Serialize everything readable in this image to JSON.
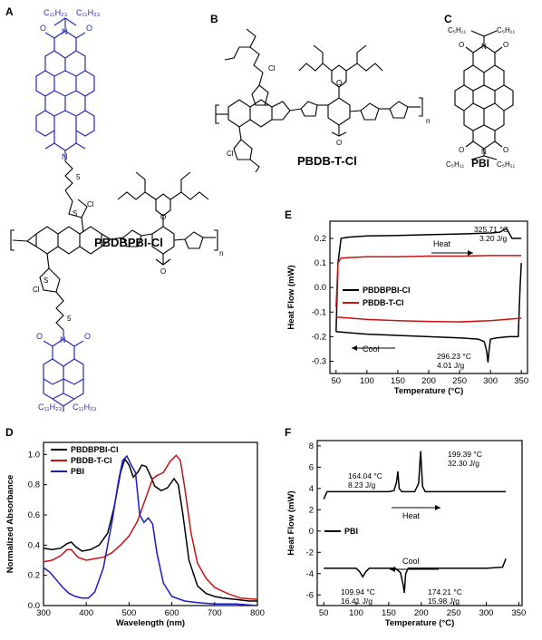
{
  "panels": {
    "A": {
      "label": "A",
      "molecule_name": "PBDBPBI-Cl",
      "atoms": {
        "alkyl_top": "C₁₁H₂₃",
        "alkyl_top2": "C₁₁H₂₃",
        "alkyl_bot": "C₁₁H₂₃",
        "alkyl_bot2": "C₁₁H₂₃",
        "N": "N",
        "O": "O",
        "S": "S",
        "Cl": "Cl",
        "n": "n",
        "spacer": "5"
      }
    },
    "B": {
      "label": "B",
      "molecule_name": "PBDB-T-Cl",
      "atoms": {
        "S": "S",
        "O": "O",
        "Cl": "Cl",
        "n": "n"
      }
    },
    "C": {
      "label": "C",
      "molecule_name": "PBI",
      "atoms": {
        "alkyl": "C₅H₁₁",
        "N": "N",
        "O": "O"
      }
    },
    "E": {
      "label": "E",
      "annotations": {
        "heat": "Heat",
        "cool": "Cool",
        "peak_heat": "325.71 °C",
        "peak_heat_enthalpy": "3.20 J/g",
        "peak_cool": "296.23 °C",
        "peak_cool_enthalpy": "4.01 J/g"
      }
    },
    "D": {
      "label": "D"
    },
    "F": {
      "label": "F",
      "annotations": {
        "heat": "Heat",
        "cool": "Cool",
        "peak1": "164.04 °C",
        "peak1_enthalpy": "8.23 J/g",
        "peak2": "199.39 °C",
        "peak2_enthalpy": "32.30 J/g",
        "peak3": "109.94 °C",
        "peak3_enthalpy": "16.41 J/g",
        "peak4": "174.21 °C",
        "peak4_enthalpy": "15.98 J/g"
      }
    }
  },
  "chart_data": [
    {
      "id": "E",
      "type": "line",
      "xlabel": "Temperature (°C)",
      "ylabel": "Heat Flow (mW)",
      "xlim": [
        40,
        360
      ],
      "ylim": [
        -0.35,
        0.27
      ],
      "xticks": [
        "50",
        "100",
        "150",
        "200",
        "250",
        "300",
        "350"
      ],
      "yticks": [
        "0.2",
        "0.1",
        "0.0",
        "-0.1",
        "-0.2",
        "-0.3"
      ],
      "legend": [
        "PBDBPBI-Cl",
        "PBDB-T-Cl"
      ],
      "legend_placement": "center-left",
      "series": [
        {
          "name": "PBDBPBI-Cl",
          "color": "#000000",
          "segment": "heat",
          "x": [
            50,
            53,
            58,
            70,
            100,
            150,
            200,
            250,
            300,
            315,
            322,
            326,
            330,
            335,
            345,
            350
          ],
          "y": [
            -0.18,
            0.1,
            0.2,
            0.205,
            0.21,
            0.212,
            0.215,
            0.218,
            0.222,
            0.225,
            0.235,
            0.24,
            0.222,
            0.2,
            0.2,
            0.2
          ]
        },
        {
          "name": "PBDBPBI-Cl",
          "color": "#000000",
          "segment": "cool",
          "x": [
            50,
            100,
            150,
            200,
            250,
            280,
            290,
            294,
            296,
            298,
            300,
            310,
            330,
            345,
            348,
            350
          ],
          "y": [
            -0.18,
            -0.19,
            -0.195,
            -0.2,
            -0.205,
            -0.21,
            -0.22,
            -0.26,
            -0.305,
            -0.25,
            -0.21,
            -0.205,
            -0.2,
            -0.2,
            0.0,
            0.1
          ]
        },
        {
          "name": "PBDB-T-Cl",
          "color": "#cc1111",
          "segment": "heat",
          "x": [
            50,
            53,
            58,
            100,
            150,
            200,
            250,
            300,
            350
          ],
          "y": [
            -0.08,
            0.1,
            0.12,
            0.125,
            0.125,
            0.128,
            0.128,
            0.13,
            0.13
          ]
        },
        {
          "name": "PBDB-T-Cl",
          "color": "#cc1111",
          "segment": "cool",
          "x": [
            50,
            100,
            150,
            200,
            250,
            300,
            350
          ],
          "y": [
            -0.12,
            -0.13,
            -0.135,
            -0.138,
            -0.14,
            -0.135,
            -0.125
          ]
        }
      ]
    },
    {
      "id": "D",
      "type": "line",
      "xlabel": "Wavelength (nm)",
      "ylabel": "Normalized Absorbance",
      "xlim": [
        300,
        800
      ],
      "ylim": [
        0,
        1.08
      ],
      "xticks": [
        "300",
        "400",
        "500",
        "600",
        "700",
        "800"
      ],
      "yticks": [
        "0.0",
        "0.2",
        "0.4",
        "0.6",
        "0.8",
        "1.0"
      ],
      "legend": [
        "PBDBPBI-Cl",
        "PBDB-T-Cl",
        "PBI"
      ],
      "legend_placement": "top-left",
      "series": [
        {
          "name": "PBDBPBI-Cl",
          "color": "#000000",
          "x": [
            300,
            320,
            340,
            355,
            365,
            375,
            390,
            410,
            430,
            450,
            465,
            480,
            490,
            500,
            510,
            520,
            530,
            540,
            550,
            560,
            575,
            590,
            605,
            615,
            625,
            640,
            660,
            680,
            700,
            720,
            750,
            780,
            800
          ],
          "y": [
            0.38,
            0.37,
            0.38,
            0.41,
            0.42,
            0.39,
            0.36,
            0.37,
            0.4,
            0.48,
            0.65,
            0.88,
            0.97,
            0.93,
            0.85,
            0.88,
            0.93,
            0.92,
            0.86,
            0.79,
            0.76,
            0.78,
            0.84,
            0.8,
            0.62,
            0.3,
            0.13,
            0.08,
            0.06,
            0.05,
            0.04,
            0.03,
            0.03
          ]
        },
        {
          "name": "PBDB-T-Cl",
          "color": "#cc1111",
          "x": [
            300,
            320,
            340,
            355,
            365,
            380,
            400,
            420,
            440,
            460,
            480,
            500,
            520,
            540,
            555,
            565,
            580,
            595,
            610,
            620,
            630,
            645,
            660,
            680,
            700,
            730,
            760,
            800
          ],
          "y": [
            0.29,
            0.3,
            0.33,
            0.37,
            0.37,
            0.32,
            0.3,
            0.31,
            0.32,
            0.35,
            0.4,
            0.46,
            0.56,
            0.72,
            0.84,
            0.86,
            0.88,
            0.95,
            0.995,
            0.96,
            0.78,
            0.48,
            0.28,
            0.18,
            0.12,
            0.08,
            0.05,
            0.04
          ]
        },
        {
          "name": "PBI",
          "color": "#1a1acc",
          "x": [
            300,
            315,
            330,
            345,
            360,
            375,
            390,
            405,
            420,
            440,
            460,
            475,
            485,
            495,
            505,
            515,
            525,
            535,
            545,
            555,
            565,
            580,
            600,
            630,
            660,
            700,
            750,
            800
          ],
          "y": [
            0.25,
            0.22,
            0.17,
            0.12,
            0.08,
            0.06,
            0.05,
            0.05,
            0.09,
            0.25,
            0.55,
            0.82,
            0.96,
            0.99,
            0.93,
            0.88,
            0.6,
            0.55,
            0.58,
            0.54,
            0.35,
            0.15,
            0.06,
            0.03,
            0.02,
            0.01,
            0.01,
            0.0
          ]
        }
      ]
    },
    {
      "id": "F",
      "type": "line",
      "xlabel": "Temperature (°C)",
      "ylabel": "Heat Flow (mW)",
      "xlim": [
        40,
        355
      ],
      "ylim": [
        -7,
        8.5
      ],
      "xticks": [
        "50",
        "100",
        "150",
        "200",
        "250",
        "300",
        "350"
      ],
      "yticks": [
        "8",
        "6",
        "4",
        "2",
        "0",
        "-2",
        "-4",
        "-6"
      ],
      "legend": [
        "PBI"
      ],
      "legend_placement": "center-left",
      "series": [
        {
          "name": "PBI",
          "color": "#000000",
          "segment": "heat",
          "x": [
            50,
            55,
            60,
            100,
            150,
            158,
            162,
            164,
            166,
            170,
            190,
            196,
            199,
            202,
            206,
            250,
            300,
            330
          ],
          "y": [
            3.0,
            3.7,
            3.7,
            3.7,
            3.7,
            3.8,
            4.6,
            5.6,
            4.0,
            3.7,
            3.7,
            4.5,
            7.5,
            4.2,
            3.7,
            3.7,
            3.7,
            3.7
          ]
        },
        {
          "name": "PBI",
          "color": "#000000",
          "segment": "cool",
          "x": [
            50,
            100,
            105,
            110,
            115,
            120,
            160,
            168,
            172,
            174,
            176,
            180,
            250,
            300,
            325,
            330
          ],
          "y": [
            -3.5,
            -3.5,
            -3.8,
            -4.3,
            -3.8,
            -3.5,
            -3.5,
            -3.9,
            -5.0,
            -5.8,
            -4.0,
            -3.5,
            -3.5,
            -3.5,
            -3.4,
            -2.6
          ]
        }
      ]
    }
  ]
}
